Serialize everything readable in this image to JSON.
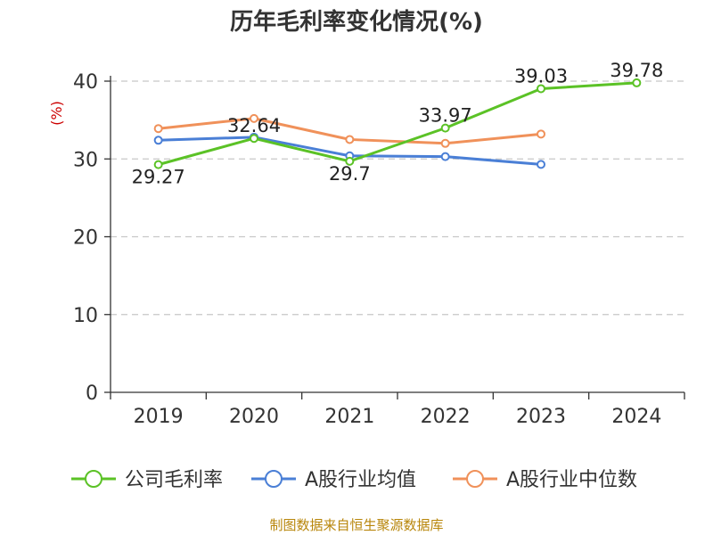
{
  "chart_data": {
    "type": "line",
    "title": "历年毛利率变化情况(%)",
    "ylabel": "(%)",
    "xlabel": "",
    "categories": [
      "2019",
      "2020",
      "2021",
      "2022",
      "2023",
      "2024"
    ],
    "ylim": [
      0,
      40
    ],
    "yticks": [
      "0",
      "10",
      "20",
      "30",
      "40"
    ],
    "grid": true,
    "legend_position": "bottom",
    "series": [
      {
        "name": "公司毛利率",
        "color": "#5bc226",
        "values": [
          29.27,
          32.64,
          29.7,
          33.97,
          39.03,
          39.78
        ],
        "labels": [
          "29.27",
          "32.64",
          "29.7",
          "33.97",
          "39.03",
          "39.78"
        ]
      },
      {
        "name": "A股行业均值",
        "color": "#4a7fd6",
        "values": [
          32.4,
          32.8,
          30.4,
          30.3,
          29.3,
          null
        ]
      },
      {
        "name": "A股行业中位数",
        "color": "#f0915a",
        "values": [
          33.9,
          35.2,
          32.5,
          32.0,
          33.2,
          null
        ]
      }
    ]
  },
  "source": "制图数据来自恒生聚源数据库"
}
